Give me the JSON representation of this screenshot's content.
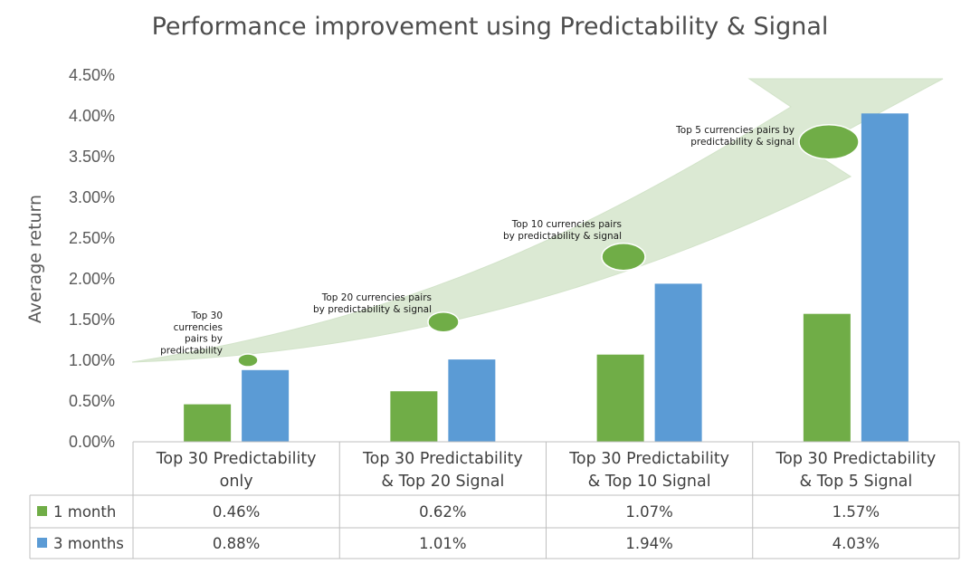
{
  "chart_data": {
    "type": "bar",
    "title": "Performance improvement using Predictability & Signal",
    "ylabel": "Average return",
    "xlabel": "",
    "ylim": [
      0,
      4.5
    ],
    "y_ticks": [
      "0.00%",
      "0.50%",
      "1.00%",
      "1.50%",
      "2.00%",
      "2.50%",
      "3.00%",
      "3.50%",
      "4.00%",
      "4.50%"
    ],
    "categories": [
      [
        "Top 30 Predictability",
        "only"
      ],
      [
        "Top 30 Predictability",
        "& Top 20 Signal"
      ],
      [
        "Top 30 Predictability",
        "& Top 10 Signal"
      ],
      [
        "Top 30 Predictability",
        "& Top 5 Signal"
      ]
    ],
    "series": [
      {
        "name": "1 month",
        "color": "#70ad47",
        "values": [
          0.46,
          0.62,
          1.07,
          1.57
        ],
        "labels": [
          "0.46%",
          "0.62%",
          "1.07%",
          "1.57%"
        ]
      },
      {
        "name": "3 months",
        "color": "#5b9bd5",
        "values": [
          0.88,
          1.01,
          1.94,
          4.03
        ],
        "labels": [
          "0.88%",
          "1.01%",
          "1.94%",
          "4.03%"
        ]
      }
    ],
    "annotations": [
      {
        "lines": [
          "Top 30",
          "currencies",
          "pairs by",
          "predictability"
        ],
        "y": 1.0
      },
      {
        "lines": [
          "Top 20 currencies pairs",
          "by predictability & signal"
        ],
        "y": 1.47
      },
      {
        "lines": [
          "Top 10 currencies pairs",
          "by predictability & signal"
        ],
        "y": 2.27
      },
      {
        "lines": [
          "Top 5 currencies pairs by",
          "predictability & signal"
        ],
        "y": 3.68
      }
    ],
    "data_table": true,
    "legend": "in data table",
    "grid": false
  }
}
